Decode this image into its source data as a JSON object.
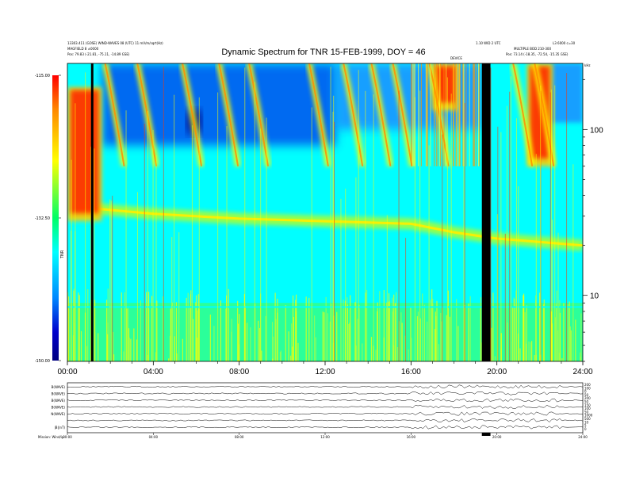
{
  "header": {
    "title": "Dynamic Spectrum for TNR 15-FEB-1999, DOY = 46",
    "left_info_1": "13303.411 (GOSE) WIND-WAVES 08 (UTC) 11 mV/m/sqrt(Hz)",
    "left_info_2": "MAGFIELD 8 ±0000",
    "left_info_3": "Pos:    79.83 (-21.81, -75.11, -14.89 GSE)",
    "right_info_1": "1.10 WID 2 UTC",
    "right_info_2": "L3 6000 c=30",
    "right_info_3": "MULTIPLE BOD 210-300",
    "right_info_4": "Pos:    73.14 (-18.35, -72.54, -15.35 GSE)",
    "marker": "DEVICE"
  },
  "colorbar": {
    "ticks": [
      "-115.00",
      "-132.50",
      "-150.00"
    ],
    "label": "TNR",
    "stops": [
      "#ff0000",
      "#ff8800",
      "#ffff00",
      "#00ff66",
      "#00ffff",
      "#0088ff",
      "#0000cc",
      "#000080"
    ]
  },
  "chart_data": {
    "type": "heatmap",
    "title": "Dynamic Spectrum for TNR 15-FEB-1999, DOY = 46",
    "xlabel": "",
    "ylabel": "kHz",
    "x_ticks": [
      "00:00",
      "04:00",
      "08:00",
      "12:00",
      "16:00",
      "20:00",
      "24:00"
    ],
    "x_range_hours": [
      0,
      24
    ],
    "y_scale": "log",
    "y_ticks": [
      10,
      100
    ],
    "y_range_khz": [
      4,
      250
    ],
    "colorbar_range": [
      -150,
      -115
    ],
    "data_gaps_hours": [
      [
        1.1,
        1.2
      ],
      [
        19.3,
        19.7
      ]
    ],
    "plasma_line": [
      {
        "t": 0.5,
        "f": 34
      },
      {
        "t": 4,
        "f": 31
      },
      {
        "t": 8,
        "f": 29
      },
      {
        "t": 12,
        "f": 28
      },
      {
        "t": 16,
        "f": 27
      },
      {
        "t": 18,
        "f": 24
      },
      {
        "t": 20,
        "f": 22
      },
      {
        "t": 24,
        "f": 20
      }
    ],
    "type3_bursts_hours": [
      2.2,
      3.7,
      5.8,
      7.5,
      8.9,
      11.7,
      13.3,
      14.6,
      15.6,
      17.3,
      21.2,
      22.2
    ],
    "intense_regions": [
      {
        "t0": 0,
        "t1": 1.6,
        "f0": 28,
        "f1": 180,
        "level": "high"
      },
      {
        "t0": 17.0,
        "t1": 18.2,
        "f0": 130,
        "f1": 250,
        "level": "high"
      },
      {
        "t0": 21.4,
        "t1": 22.6,
        "f0": 60,
        "f1": 250,
        "level": "high"
      }
    ],
    "low_regions": [
      {
        "t0": 1.6,
        "t1": 12.5,
        "f0": 80,
        "f1": 250,
        "level": "low"
      },
      {
        "t0": 5.6,
        "t1": 6.2,
        "f0": 95,
        "f1": 130,
        "level": "min"
      }
    ]
  },
  "panel2": {
    "row_labels": [
      "B(WAVE)",
      "B(WAVE)",
      "B(WAVE)",
      "B(WAVE)",
      "N(WAVE)",
      "",
      "|B|(nT)"
    ],
    "right_labels": [
      "200",
      "100",
      "0",
      "50",
      "200",
      "50",
      "150",
      "100",
      "50",
      "1000",
      "500",
      "10",
      "5",
      "0"
    ],
    "x_ticks": [
      "00:00",
      "04:00",
      "08:00",
      "12:00",
      "16:00",
      "20:00",
      "24:00"
    ],
    "footer": "Mission: Wind/ip"
  }
}
